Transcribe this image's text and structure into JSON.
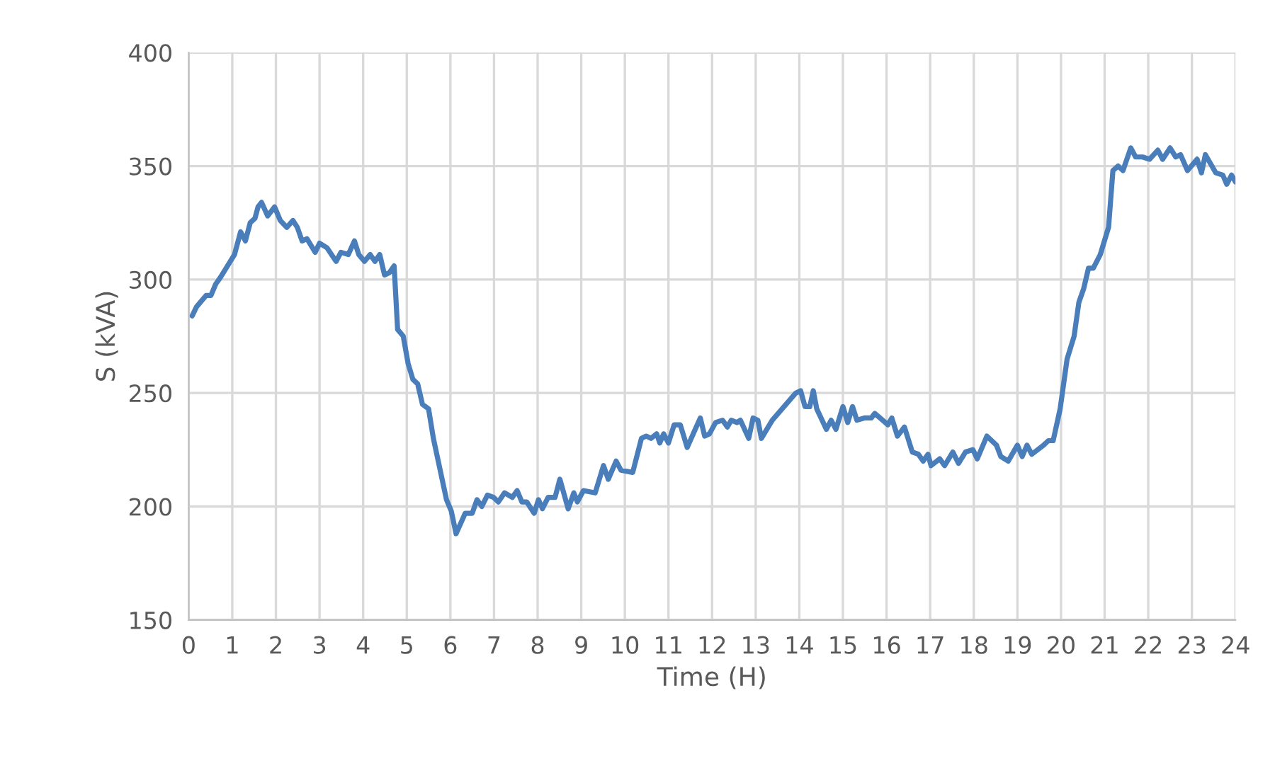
{
  "chart_data": {
    "type": "line",
    "xlabel": "Time (H)",
    "ylabel": "S (kVA)",
    "xlim": [
      0,
      24
    ],
    "xticks": [
      0,
      1,
      2,
      3,
      4,
      5,
      6,
      7,
      8,
      9,
      10,
      11,
      12,
      13,
      14,
      15,
      16,
      17,
      18,
      19,
      20,
      21,
      22,
      23,
      24
    ],
    "ylim": [
      150,
      400
    ],
    "yticks": [
      150,
      200,
      250,
      300,
      350,
      400
    ],
    "grid": true,
    "marker": "none",
    "line_style": "solid",
    "series": [
      {
        "color": "#4a7ebb",
        "x": [
          0.08,
          0.18,
          0.4,
          0.51,
          0.62,
          0.73,
          0.89,
          1.05,
          1.19,
          1.3,
          1.41,
          1.52,
          1.59,
          1.67,
          1.81,
          1.97,
          2.1,
          2.25,
          2.39,
          2.49,
          2.6,
          2.71,
          2.9,
          3.0,
          3.17,
          3.38,
          3.49,
          3.66,
          3.8,
          3.9,
          4.03,
          4.16,
          4.27,
          4.38,
          4.49,
          4.6,
          4.71,
          4.79,
          4.92,
          5.03,
          5.14,
          5.25,
          5.36,
          5.5,
          5.61,
          5.91,
          6.02,
          6.13,
          6.34,
          6.5,
          6.61,
          6.72,
          6.85,
          6.99,
          7.1,
          7.24,
          7.42,
          7.53,
          7.64,
          7.75,
          7.92,
          8.02,
          8.11,
          8.24,
          8.4,
          8.51,
          8.7,
          8.83,
          8.91,
          9.05,
          9.32,
          9.51,
          9.62,
          9.8,
          9.91,
          10.18,
          10.38,
          10.49,
          10.6,
          10.73,
          10.8,
          10.89,
          11.0,
          11.13,
          11.27,
          11.43,
          11.59,
          11.73,
          11.83,
          11.94,
          12.08,
          12.24,
          12.35,
          12.44,
          12.57,
          12.65,
          12.84,
          12.94,
          13.05,
          13.13,
          13.38,
          13.65,
          13.92,
          14.03,
          14.13,
          14.24,
          14.32,
          14.4,
          14.62,
          14.73,
          14.84,
          15.0,
          15.11,
          15.22,
          15.32,
          15.49,
          15.65,
          15.73,
          16.03,
          16.12,
          16.25,
          16.41,
          16.59,
          16.73,
          16.84,
          16.95,
          17.02,
          17.22,
          17.33,
          17.52,
          17.65,
          17.81,
          17.98,
          18.08,
          18.3,
          18.52,
          18.62,
          18.79,
          19.0,
          19.11,
          19.22,
          19.33,
          19.6,
          19.71,
          19.82,
          19.98,
          20.14,
          20.3,
          20.41,
          20.52,
          20.63,
          20.74,
          20.9,
          21.09,
          21.19,
          21.31,
          21.42,
          21.6,
          21.71,
          21.87,
          22.03,
          22.22,
          22.33,
          22.5,
          22.63,
          22.74,
          22.9,
          23.12,
          23.22,
          23.31,
          23.55,
          23.71,
          23.8,
          23.91,
          24.0
        ],
        "values": [
          284,
          288,
          293,
          293,
          298,
          301,
          306,
          311,
          321,
          317,
          325,
          327,
          332,
          334,
          328,
          332,
          326,
          323,
          326,
          323,
          317,
          318,
          312,
          316,
          314,
          308,
          312,
          311,
          317,
          311,
          308,
          311,
          308,
          311,
          302,
          303,
          306,
          278,
          275,
          263,
          256,
          254,
          245,
          243,
          230,
          203,
          198,
          188,
          197,
          197,
          203,
          200,
          205,
          204,
          202,
          206,
          204,
          207,
          202,
          202,
          197,
          203,
          199,
          204,
          204,
          212,
          199,
          206,
          202,
          207,
          206,
          218,
          212,
          220,
          216,
          215,
          230,
          231,
          230,
          232,
          228,
          232,
          228,
          236,
          236,
          226,
          233,
          239,
          231,
          232,
          237,
          238,
          235,
          238,
          237,
          238,
          230,
          239,
          238,
          230,
          238,
          244,
          250,
          251,
          244,
          244,
          251,
          243,
          234,
          238,
          234,
          244,
          237,
          244,
          238,
          239,
          239,
          241,
          236,
          239,
          231,
          235,
          224,
          223,
          220,
          223,
          218,
          221,
          218,
          224,
          219,
          224,
          225,
          221,
          231,
          227,
          222,
          220,
          227,
          222,
          227,
          223,
          227,
          229,
          229,
          243,
          265,
          275,
          290,
          296,
          305,
          305,
          311,
          323,
          348,
          350,
          348,
          358,
          354,
          354,
          353,
          357,
          353,
          358,
          354,
          355,
          348,
          353,
          347,
          355,
          347,
          346,
          342,
          346,
          343
        ]
      }
    ]
  }
}
